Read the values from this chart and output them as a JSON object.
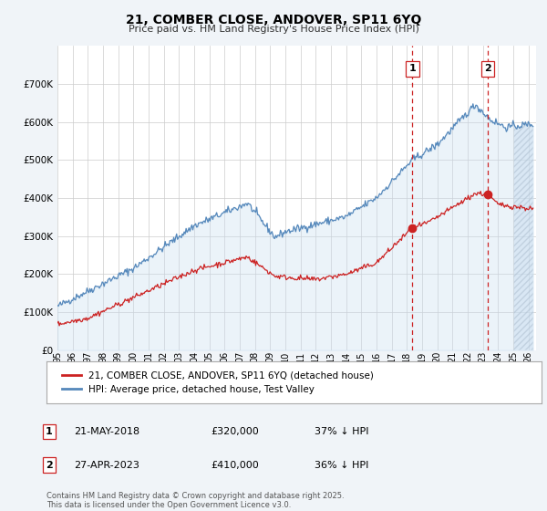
{
  "title": "21, COMBER CLOSE, ANDOVER, SP11 6YQ",
  "subtitle": "Price paid vs. HM Land Registry's House Price Index (HPI)",
  "ylim": [
    0,
    800000
  ],
  "xlim_start": 1995.0,
  "xlim_end": 2026.5,
  "red_line_color": "#cc2222",
  "blue_line_color": "#5588bb",
  "blue_fill_color": "#c8ddf0",
  "vline1_x": 2018.37,
  "vline2_x": 2023.32,
  "marker1_x": 2018.37,
  "marker1_y": 320000,
  "marker2_x": 2023.32,
  "marker2_y": 410000,
  "legend_label_red": "21, COMBER CLOSE, ANDOVER, SP11 6YQ (detached house)",
  "legend_label_blue": "HPI: Average price, detached house, Test Valley",
  "annotation1_num": "1",
  "annotation1_date": "21-MAY-2018",
  "annotation1_price": "£320,000",
  "annotation1_hpi": "37% ↓ HPI",
  "annotation2_num": "2",
  "annotation2_date": "27-APR-2023",
  "annotation2_price": "£410,000",
  "annotation2_hpi": "36% ↓ HPI",
  "footer": "Contains HM Land Registry data © Crown copyright and database right 2025.\nThis data is licensed under the Open Government Licence v3.0.",
  "bg_color": "#f0f4f8",
  "plot_bg_color": "#ffffff",
  "grid_color": "#cccccc",
  "hatch_start": 2025.0
}
